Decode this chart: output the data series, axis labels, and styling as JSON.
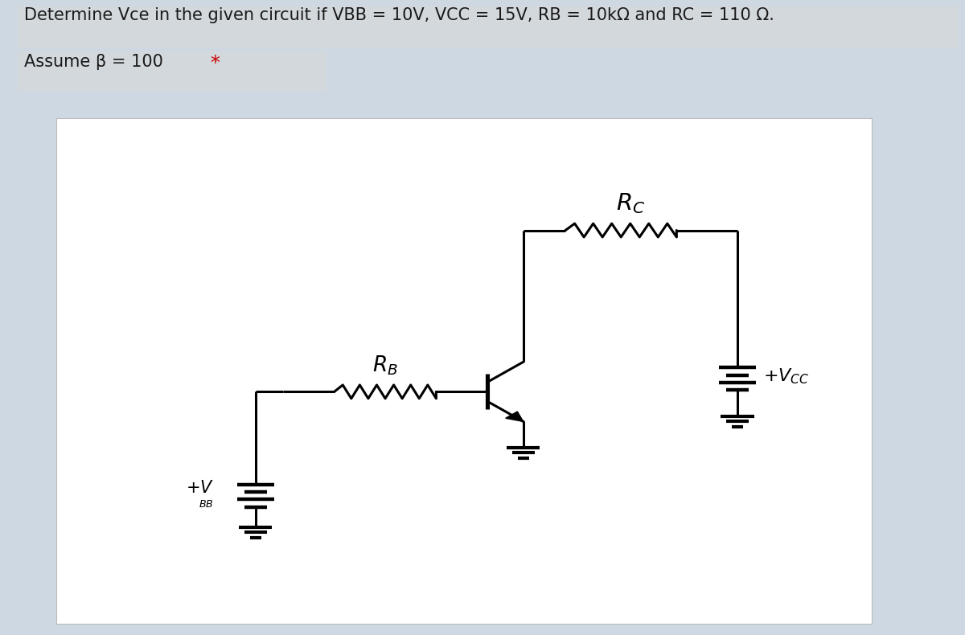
{
  "bg_color": "#cdd8e3",
  "circuit_bg": "#ffffff",
  "panel_bg": "#d3d8dd",
  "line_color": "#000000",
  "line_width": 2.2,
  "text_line1": "Determine Vce in the given circuit if VBB = 10V, VCC = 15V, RB = 10kΩ and RC = 110 Ω.",
  "text_line2": "Assume β = 100  *",
  "star_color": "#cc0000",
  "text_fontsize": 15
}
